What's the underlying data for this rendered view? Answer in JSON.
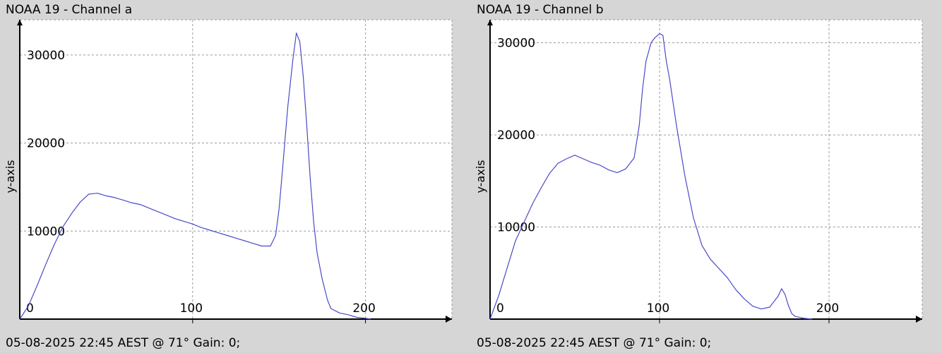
{
  "colors": {
    "background": "#d6d6d6",
    "plot_bg": "#ffffff",
    "line": "#4a4ac8",
    "grid": "#9a9a9a",
    "axis": "#000000"
  },
  "chart_data": [
    {
      "type": "line",
      "title": "NOAA 19 - Channel a",
      "footer": "05-08-2025 22:45 AEST @ 71° Gain: 0;",
      "xlabel": "",
      "ylabel": "y-axis",
      "xlim": [
        0,
        250
      ],
      "ylim": [
        0,
        34000
      ],
      "xticks": [
        0,
        100,
        200
      ],
      "yticks": [
        10000,
        20000,
        30000
      ],
      "grid": true,
      "legend": "none",
      "series": [
        {
          "x": [
            0,
            5,
            10,
            15,
            20,
            25,
            30,
            35,
            40,
            45,
            50,
            55,
            60,
            65,
            70,
            75,
            80,
            85,
            90,
            95,
            100,
            105,
            110,
            115,
            120,
            125,
            130,
            135,
            140,
            145,
            148,
            150,
            152,
            155,
            158,
            160,
            162,
            164,
            166,
            168,
            170,
            172,
            175,
            178,
            180,
            185,
            190,
            195,
            200,
            203
          ],
          "y": [
            0,
            1500,
            3800,
            6200,
            8500,
            10500,
            12000,
            13300,
            14200,
            14300,
            14000,
            13800,
            13500,
            13200,
            13000,
            12600,
            12200,
            11800,
            11400,
            11100,
            10800,
            10400,
            10100,
            9800,
            9500,
            9200,
            8900,
            8600,
            8300,
            8300,
            9500,
            12500,
            17000,
            24000,
            29500,
            32500,
            31500,
            27500,
            22000,
            16000,
            11000,
            7500,
            4500,
            2200,
            1200,
            700,
            500,
            200,
            100,
            0
          ]
        }
      ]
    },
    {
      "type": "line",
      "title": "NOAA 19 - Channel b",
      "footer": "05-08-2025 22:45 AEST @ 71° Gain: 0;",
      "xlabel": "",
      "ylabel": "y-axis",
      "xlim": [
        0,
        255
      ],
      "ylim": [
        0,
        32500
      ],
      "xticks": [
        0,
        100,
        200
      ],
      "yticks": [
        10000,
        20000,
        30000
      ],
      "grid": true,
      "legend": "none",
      "series": [
        {
          "x": [
            0,
            5,
            10,
            15,
            20,
            25,
            30,
            35,
            40,
            45,
            50,
            55,
            60,
            65,
            70,
            75,
            80,
            85,
            88,
            90,
            92,
            95,
            97,
            100,
            102,
            104,
            106,
            108,
            110,
            115,
            120,
            125,
            130,
            135,
            140,
            145,
            150,
            155,
            160,
            165,
            170,
            172,
            174,
            176,
            178,
            180,
            185,
            190
          ],
          "y": [
            0,
            2500,
            5500,
            8500,
            10500,
            12500,
            14200,
            15800,
            16900,
            17400,
            17800,
            17400,
            17000,
            16700,
            16200,
            15900,
            16300,
            17500,
            21000,
            25000,
            28000,
            30000,
            30500,
            31000,
            30800,
            28000,
            26000,
            23500,
            21000,
            15500,
            11000,
            8000,
            6500,
            5500,
            4500,
            3200,
            2200,
            1400,
            1100,
            1300,
            2500,
            3300,
            2700,
            1500,
            600,
            300,
            100,
            0
          ]
        }
      ]
    }
  ]
}
